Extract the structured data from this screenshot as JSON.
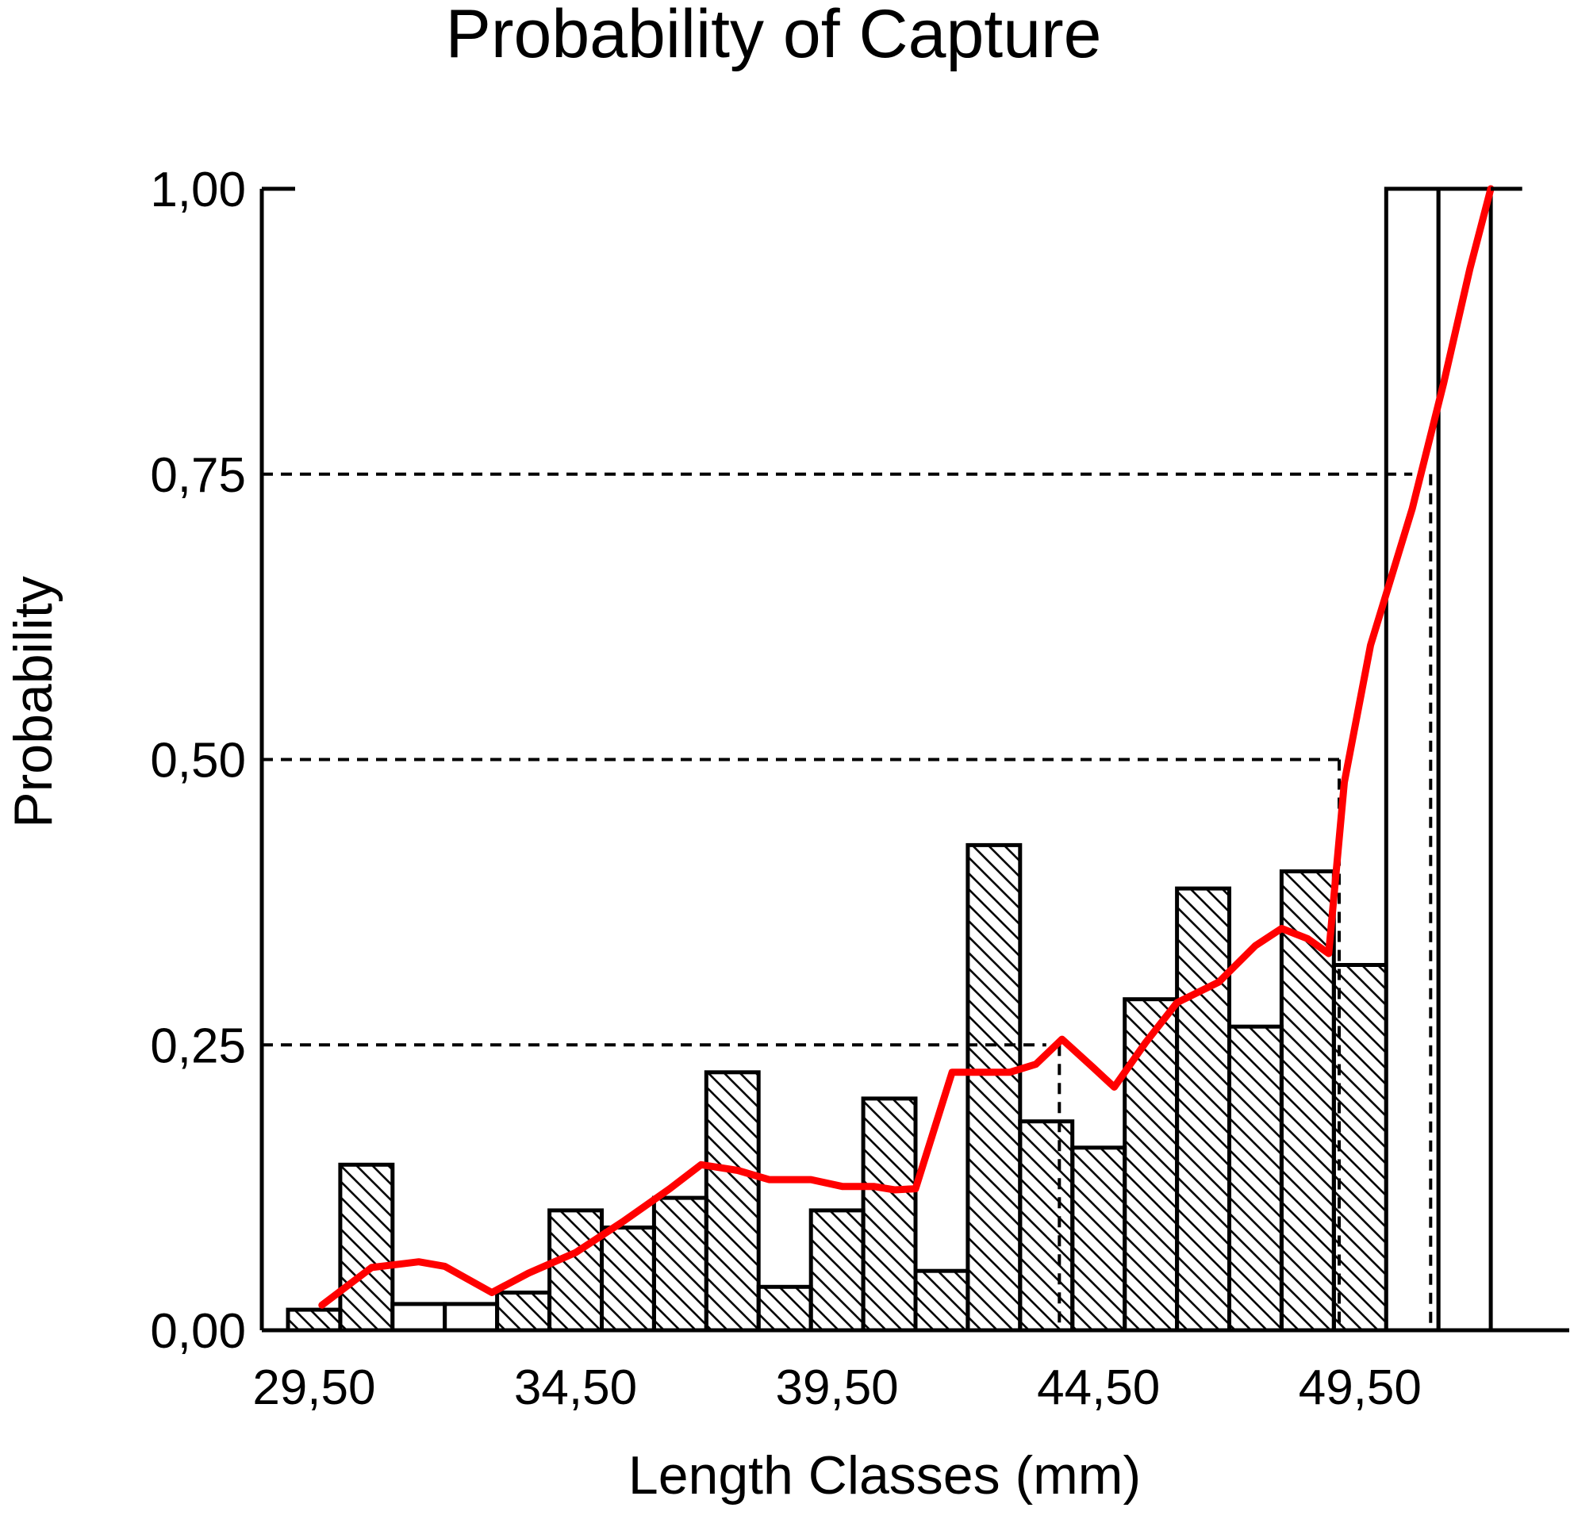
{
  "chart_data": {
    "type": "bar",
    "title": "Probability of Capture",
    "xlabel": "Length Classes (mm)",
    "ylabel": "Probability",
    "xlim": [
      28.5,
      53.5
    ],
    "ylim": [
      0,
      1
    ],
    "x_ticks": [
      {
        "value": 29.5,
        "label": "29,50"
      },
      {
        "value": 34.5,
        "label": "34,50"
      },
      {
        "value": 39.5,
        "label": "39,50"
      },
      {
        "value": 44.5,
        "label": "44,50"
      },
      {
        "value": 49.5,
        "label": "49,50"
      }
    ],
    "y_ticks": [
      {
        "value": 0,
        "label": "0,00"
      },
      {
        "value": 0.25,
        "label": "0,25"
      },
      {
        "value": 0.5,
        "label": "0,50"
      },
      {
        "value": 0.75,
        "label": "0,75"
      },
      {
        "value": 1,
        "label": "1,00"
      }
    ],
    "bar_width": 1,
    "bars": [
      {
        "x": 29.5,
        "value": 0.018,
        "hatched": true
      },
      {
        "x": 30.5,
        "value": 0.145,
        "hatched": true
      },
      {
        "x": 31.5,
        "value": 0.023,
        "hatched": false
      },
      {
        "x": 32.5,
        "value": 0.023,
        "hatched": false
      },
      {
        "x": 33.5,
        "value": 0.033,
        "hatched": true
      },
      {
        "x": 34.5,
        "value": 0.105,
        "hatched": true
      },
      {
        "x": 35.5,
        "value": 0.09,
        "hatched": true
      },
      {
        "x": 36.5,
        "value": 0.116,
        "hatched": true
      },
      {
        "x": 37.5,
        "value": 0.226,
        "hatched": true
      },
      {
        "x": 38.5,
        "value": 0.038,
        "hatched": true
      },
      {
        "x": 39.5,
        "value": 0.105,
        "hatched": true
      },
      {
        "x": 40.5,
        "value": 0.203,
        "hatched": true
      },
      {
        "x": 41.5,
        "value": 0.052,
        "hatched": true
      },
      {
        "x": 42.5,
        "value": 0.425,
        "hatched": true
      },
      {
        "x": 43.5,
        "value": 0.183,
        "hatched": true
      },
      {
        "x": 44.5,
        "value": 0.16,
        "hatched": true
      },
      {
        "x": 45.5,
        "value": 0.29,
        "hatched": true
      },
      {
        "x": 46.5,
        "value": 0.387,
        "hatched": true
      },
      {
        "x": 47.5,
        "value": 0.266,
        "hatched": true
      },
      {
        "x": 48.5,
        "value": 0.402,
        "hatched": true
      },
      {
        "x": 49.5,
        "value": 0.32,
        "hatched": true
      },
      {
        "x": 50.5,
        "value": 1.0,
        "hatched": false
      },
      {
        "x": 51.5,
        "value": 1.0,
        "hatched": false
      }
    ],
    "series": [
      {
        "type": "line",
        "color": "#ff0000",
        "points": [
          [
            29.65,
            0.022
          ],
          [
            30.6,
            0.055
          ],
          [
            31.5,
            0.06
          ],
          [
            32.0,
            0.056
          ],
          [
            32.9,
            0.033
          ],
          [
            33.6,
            0.05
          ],
          [
            34.5,
            0.068
          ],
          [
            35.4,
            0.095
          ],
          [
            36.3,
            0.124
          ],
          [
            36.9,
            0.145
          ],
          [
            37.6,
            0.14
          ],
          [
            38.2,
            0.132
          ],
          [
            39.0,
            0.132
          ],
          [
            39.6,
            0.126
          ],
          [
            40.2,
            0.126
          ],
          [
            40.6,
            0.123
          ],
          [
            41.0,
            0.124
          ],
          [
            41.7,
            0.226
          ],
          [
            42.8,
            0.226
          ],
          [
            43.3,
            0.233
          ],
          [
            43.8,
            0.255
          ],
          [
            44.4,
            0.23
          ],
          [
            44.8,
            0.213
          ],
          [
            45.4,
            0.252
          ],
          [
            46.0,
            0.287
          ],
          [
            46.8,
            0.305
          ],
          [
            47.5,
            0.337
          ],
          [
            48.0,
            0.352
          ],
          [
            48.5,
            0.343
          ],
          [
            48.9,
            0.33
          ],
          [
            49.2,
            0.48
          ],
          [
            49.7,
            0.6
          ],
          [
            50.5,
            0.72
          ],
          [
            51.1,
            0.83
          ],
          [
            51.6,
            0.93
          ],
          [
            52.0,
            1.0
          ]
        ]
      }
    ],
    "reference_lines": [
      {
        "y": 0.25,
        "x_end": 43.5
      },
      {
        "y": 0.5,
        "x_end": 49.2
      },
      {
        "y": 0.75,
        "x_end": 50.5
      }
    ],
    "vertical_reference_lines": [
      {
        "x": 43.75,
        "y_top": 0.25
      },
      {
        "x": 49.1,
        "y_top": 0.5
      },
      {
        "x": 50.85,
        "y_top": 0.75
      }
    ],
    "grid": false,
    "legend": "none"
  }
}
